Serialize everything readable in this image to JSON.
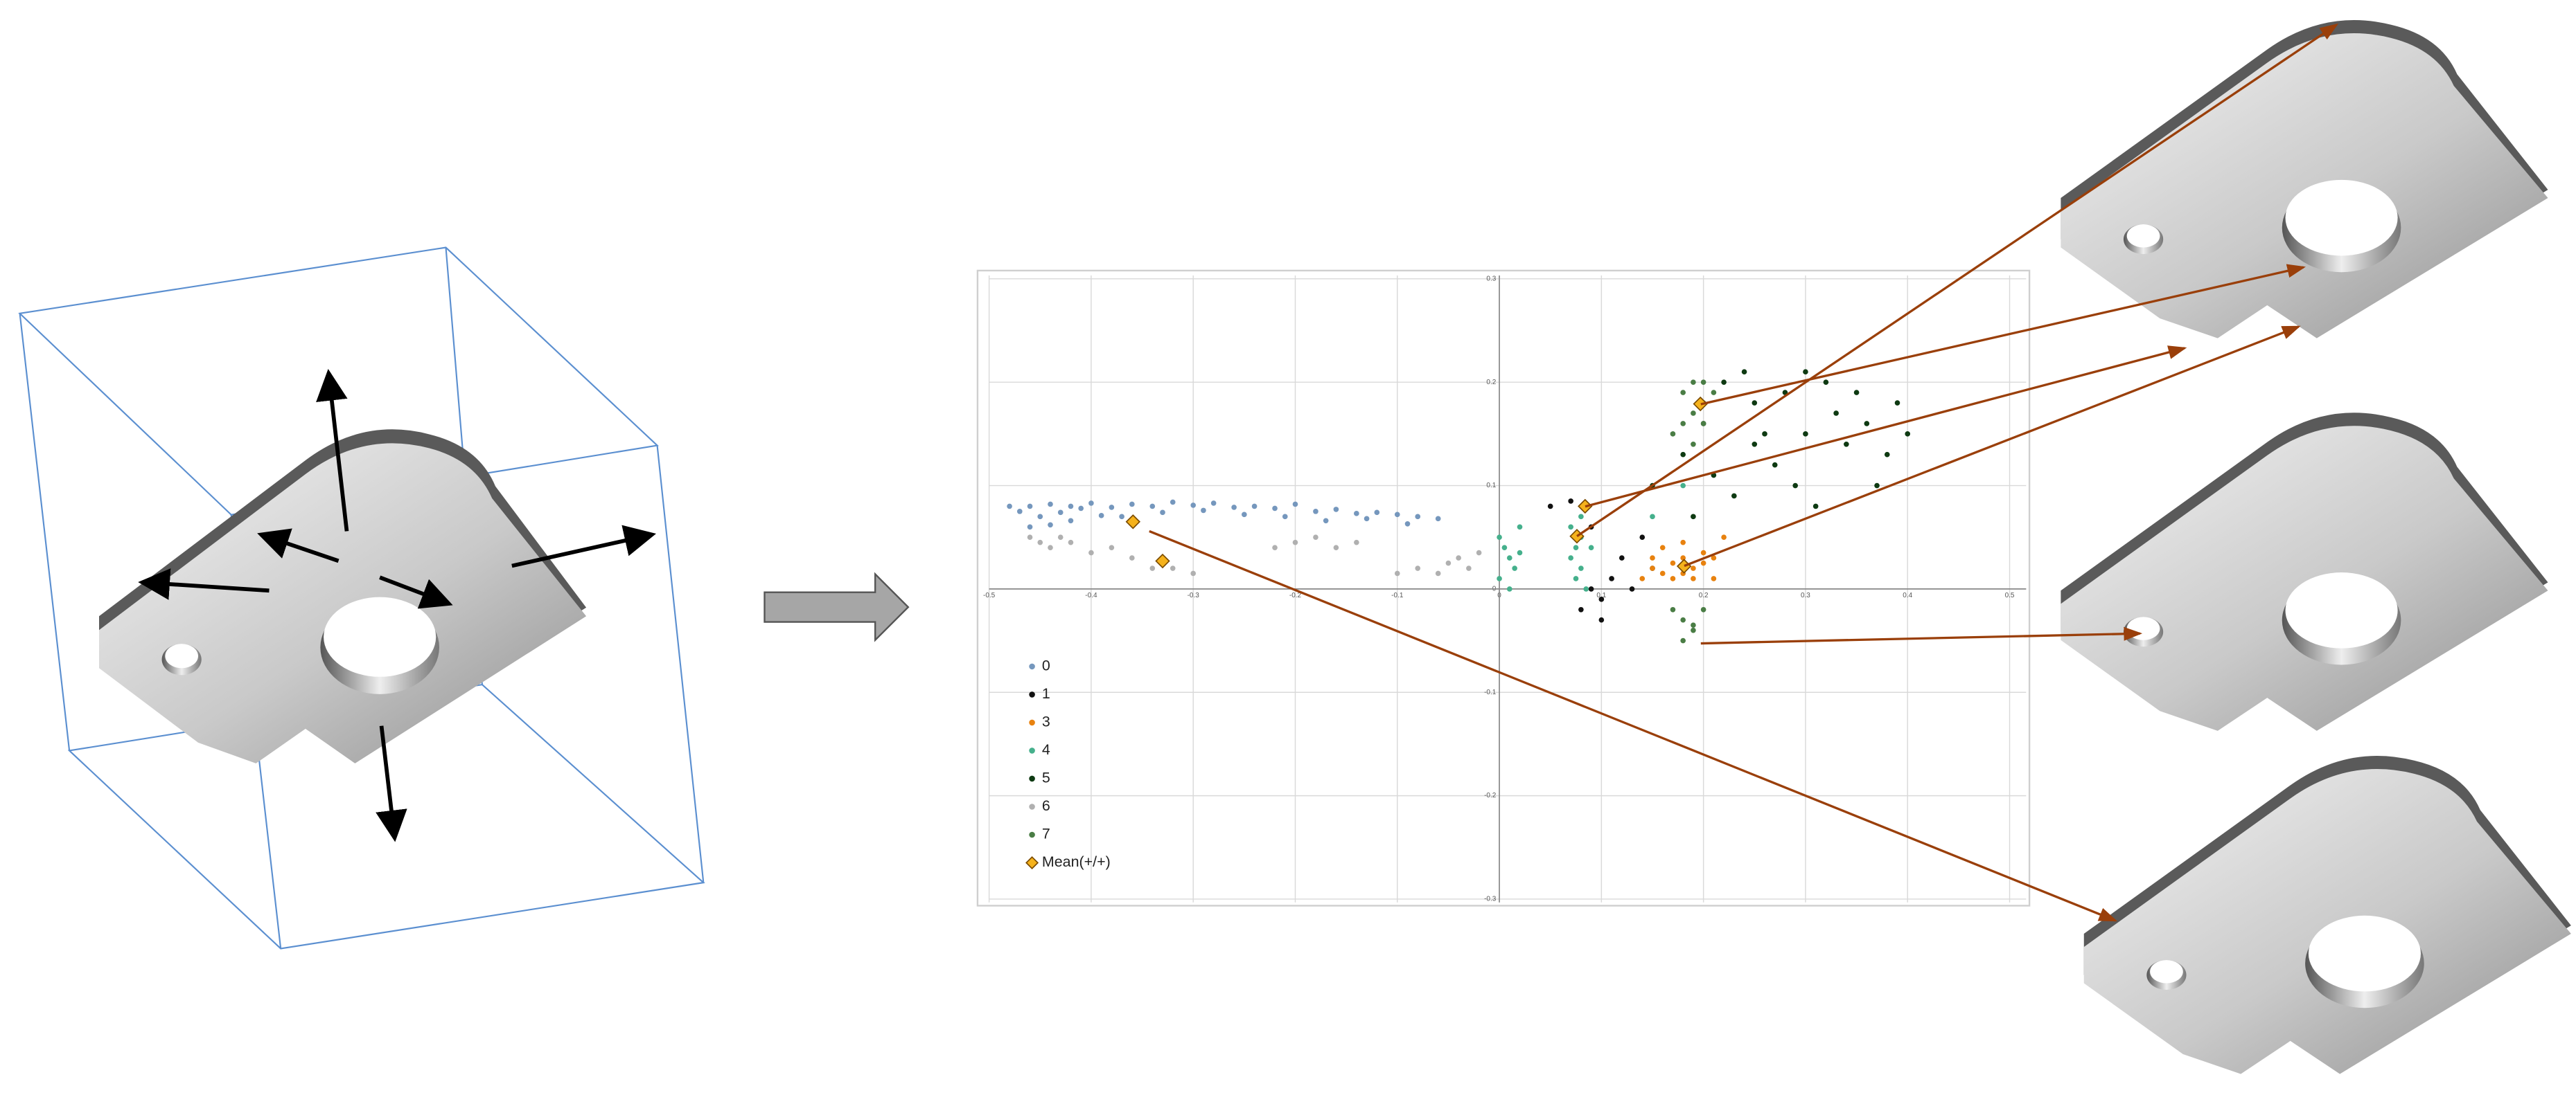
{
  "chart_data": {
    "type": "scatter",
    "xlim": [
      -0.5,
      0.5
    ],
    "ylim": [
      -0.3,
      0.3
    ],
    "xticks": [
      -0.5,
      -0.4,
      -0.3,
      -0.2,
      -0.1,
      0,
      0.1,
      0.2,
      0.3,
      0.4,
      0.5
    ],
    "yticks": [
      -0.3,
      -0.2,
      -0.1,
      0,
      0.1,
      0.2,
      0.3
    ],
    "grid": true,
    "legend": "lower left",
    "series": [
      {
        "name": "0",
        "color": "#7597bd",
        "x": [
          -0.48,
          -0.47,
          -0.46,
          -0.45,
          -0.44,
          -0.43,
          -0.42,
          -0.41,
          -0.4,
          -0.38,
          -0.36,
          -0.34,
          -0.32,
          -0.3,
          -0.28,
          -0.26,
          -0.24,
          -0.22,
          -0.2,
          -0.18,
          -0.16,
          -0.14,
          -0.12,
          -0.1,
          -0.08,
          -0.06,
          -0.46,
          -0.44,
          -0.42,
          -0.39,
          -0.37,
          -0.33,
          -0.29,
          -0.25,
          -0.21,
          -0.17,
          -0.13,
          -0.09
        ],
        "y": [
          0.08,
          0.075,
          0.08,
          0.07,
          0.082,
          0.074,
          0.08,
          0.078,
          0.083,
          0.079,
          0.082,
          0.08,
          0.084,
          0.081,
          0.083,
          0.079,
          0.08,
          0.078,
          0.082,
          0.075,
          0.077,
          0.073,
          0.074,
          0.072,
          0.07,
          0.068,
          0.06,
          0.062,
          0.066,
          0.071,
          0.07,
          0.074,
          0.076,
          0.072,
          0.07,
          0.066,
          0.068,
          0.063
        ]
      },
      {
        "name": "1",
        "color": "#111111",
        "x": [
          0.05,
          0.07,
          0.09,
          0.1,
          0.11,
          0.12,
          0.08,
          0.13,
          0.14,
          0.15,
          0.09,
          0.1
        ],
        "y": [
          0.08,
          0.085,
          0.0,
          -0.01,
          0.01,
          0.03,
          -0.02,
          0.0,
          0.05,
          0.02,
          0.06,
          -0.03
        ]
      },
      {
        "name": "3",
        "color": "#e8820f",
        "x": [
          0.14,
          0.15,
          0.16,
          0.17,
          0.18,
          0.19,
          0.2,
          0.21,
          0.17,
          0.18,
          0.19,
          0.2,
          0.22,
          0.15,
          0.16,
          0.18,
          0.21
        ],
        "y": [
          0.01,
          0.02,
          0.015,
          0.025,
          0.03,
          0.02,
          0.025,
          0.03,
          0.01,
          0.015,
          0.01,
          0.035,
          0.05,
          0.03,
          0.04,
          0.045,
          0.01
        ]
      },
      {
        "name": "4",
        "color": "#45b08c",
        "x": [
          0.0,
          0.005,
          0.01,
          0.015,
          0.02,
          0.0,
          0.01,
          0.02,
          0.07,
          0.075,
          0.08,
          0.085,
          0.07,
          0.08,
          0.075,
          0.08,
          0.09,
          0.15,
          0.18
        ],
        "y": [
          0.05,
          0.04,
          0.03,
          0.02,
          0.06,
          0.01,
          0.0,
          0.035,
          0.06,
          0.04,
          0.02,
          0.0,
          0.03,
          0.05,
          0.01,
          0.07,
          0.04,
          0.07,
          0.1
        ]
      },
      {
        "name": "5",
        "color": "#0e3a12",
        "x": [
          0.15,
          0.18,
          0.2,
          0.22,
          0.24,
          0.25,
          0.26,
          0.28,
          0.3,
          0.32,
          0.33,
          0.34,
          0.35,
          0.36,
          0.38,
          0.39,
          0.4,
          0.27,
          0.29,
          0.31,
          0.23,
          0.21,
          0.19,
          0.37,
          0.3,
          0.25
        ],
        "y": [
          0.1,
          0.13,
          0.16,
          0.2,
          0.21,
          0.18,
          0.15,
          0.19,
          0.21,
          0.2,
          0.17,
          0.14,
          0.19,
          0.16,
          0.13,
          0.18,
          0.15,
          0.12,
          0.1,
          0.08,
          0.09,
          0.11,
          0.07,
          0.1,
          0.15,
          0.14
        ]
      },
      {
        "name": "6",
        "color": "#b0b0b0",
        "x": [
          -0.46,
          -0.45,
          -0.44,
          -0.43,
          -0.42,
          -0.4,
          -0.38,
          -0.36,
          -0.34,
          -0.32,
          -0.3,
          -0.22,
          -0.2,
          -0.18,
          -0.16,
          -0.14,
          -0.1,
          -0.08,
          -0.06,
          -0.05,
          -0.04,
          -0.03,
          -0.02
        ],
        "y": [
          0.05,
          0.045,
          0.04,
          0.05,
          0.045,
          0.035,
          0.04,
          0.03,
          0.02,
          0.02,
          0.015,
          0.04,
          0.045,
          0.05,
          0.04,
          0.045,
          0.015,
          0.02,
          0.015,
          0.025,
          0.03,
          0.02,
          0.035
        ]
      },
      {
        "name": "7",
        "color": "#4a7d45",
        "x": [
          0.17,
          0.18,
          0.19,
          0.2,
          0.18,
          0.19,
          0.2,
          0.21,
          0.19,
          0.2,
          0.17,
          0.18,
          0.19,
          0.2,
          0.18,
          0.19
        ],
        "y": [
          0.15,
          0.16,
          0.17,
          0.18,
          0.19,
          0.2,
          0.2,
          0.19,
          0.14,
          0.16,
          -0.02,
          -0.03,
          -0.04,
          -0.02,
          -0.05,
          -0.035
        ]
      },
      {
        "name": "Mean(+/+)",
        "color": "#f5b21c",
        "marker": "diamond",
        "x": [
          -0.359,
          -0.33,
          0.084,
          0.076,
          0.197,
          0.181
        ],
        "y": [
          0.065,
          0.027,
          0.08,
          0.051,
          0.179,
          0.022
        ]
      }
    ]
  }
}
